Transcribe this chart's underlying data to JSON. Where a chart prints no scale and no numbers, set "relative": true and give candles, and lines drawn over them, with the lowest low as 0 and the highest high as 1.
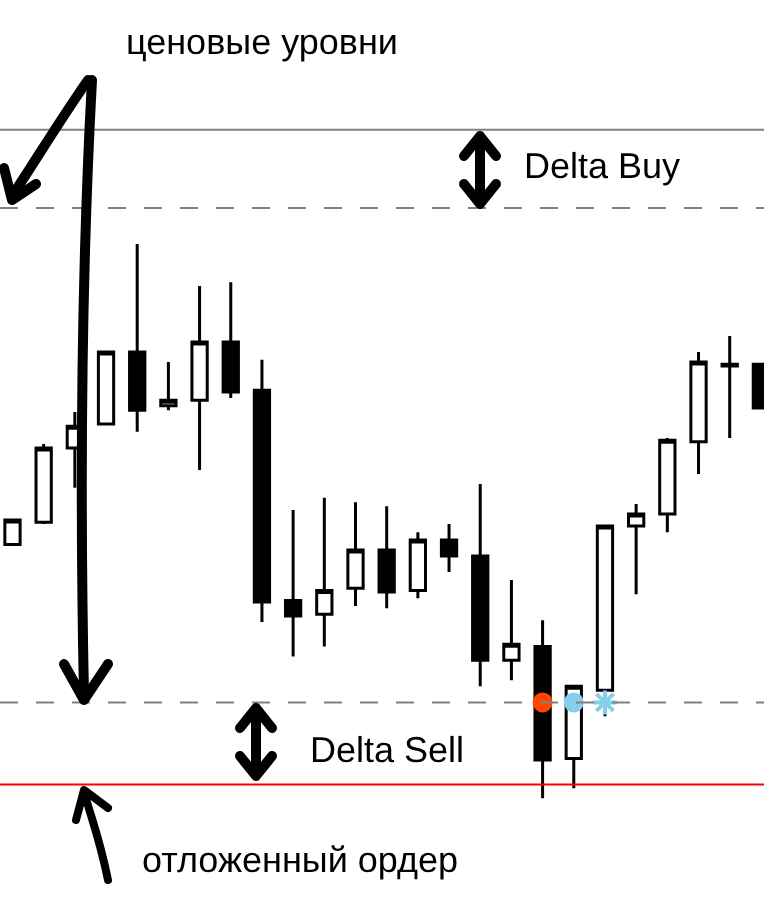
{
  "chart_data": {
    "type": "candlestick",
    "relative": true,
    "categories": [
      null,
      null,
      null,
      null,
      null,
      null,
      null,
      null,
      null,
      null,
      null,
      null,
      null,
      null,
      null,
      null,
      null,
      null,
      null,
      null,
      null,
      null,
      null,
      null,
      null
    ],
    "ohlc": [
      [
        0.458,
        0.502,
        0.458,
        0.502
      ],
      [
        0.498,
        0.639,
        0.495,
        0.632
      ],
      [
        0.632,
        0.697,
        0.56,
        0.671
      ],
      [
        0.675,
        0.805,
        0.675,
        0.805
      ],
      [
        0.805,
        1,
        0.661,
        0.7
      ],
      [
        0.708,
        0.787,
        0.7,
        0.718
      ],
      [
        0.718,
        0.924,
        0.592,
        0.823
      ],
      [
        0.823,
        0.931,
        0.722,
        0.733
      ],
      [
        0.736,
        0.791,
        0.318,
        0.354
      ],
      [
        0.357,
        0.52,
        0.256,
        0.329
      ],
      [
        0.332,
        0.542,
        0.274,
        0.375
      ],
      [
        0.379,
        0.534,
        0.347,
        0.448
      ],
      [
        0.448,
        0.527,
        0.343,
        0.372
      ],
      [
        0.375,
        0.48,
        0.361,
        0.466
      ],
      [
        0.466,
        0.495,
        0.408,
        0.437
      ],
      [
        0.437,
        0.567,
        0.202,
        0.249
      ],
      [
        0.249,
        0.394,
        0.213,
        0.278
      ],
      [
        0.274,
        0.321,
        0,
        0.069
      ],
      [
        0.072,
        0.202,
        0.018,
        0.202
      ],
      [
        0.195,
        0.491,
        0.148,
        0.491
      ],
      [
        0.491,
        0.531,
        0.368,
        0.513
      ],
      [
        0.513,
        0.65,
        0.48,
        0.646
      ],
      [
        0.643,
        0.805,
        0.585,
        0.787
      ],
      [
        0.783,
        0.834,
        0.65,
        0.78
      ],
      [
        0.783,
        0.783,
        0.704,
        0.704
      ]
    ],
    "series": [
      {
        "type": "scatter",
        "color": "#ff4500",
        "marker": "circle",
        "values": [
          null,
          null,
          null,
          null,
          null,
          null,
          null,
          null,
          null,
          null,
          null,
          null,
          null,
          null,
          null,
          null,
          null,
          0.173,
          null,
          null,
          null,
          null,
          null,
          null,
          null
        ]
      },
      {
        "type": "scatter",
        "color": "#87ceeb",
        "marker": "circle",
        "values": [
          null,
          null,
          null,
          null,
          null,
          null,
          null,
          null,
          null,
          null,
          null,
          null,
          null,
          null,
          null,
          null,
          null,
          null,
          0.173,
          null,
          null,
          null,
          null,
          null,
          null
        ]
      },
      {
        "type": "scatter",
        "color": "#87ceeb",
        "marker": "cross",
        "values": [
          null,
          null,
          null,
          null,
          null,
          null,
          null,
          null,
          null,
          null,
          null,
          null,
          null,
          null,
          null,
          null,
          null,
          null,
          null,
          0.173,
          null,
          null,
          null,
          null,
          null
        ]
      }
    ],
    "ref_lines": [
      {
        "axis": "y",
        "value": 1.206,
        "color": "#808080",
        "line_style": "solid"
      },
      {
        "axis": "y",
        "value": 1.065,
        "color": "#808080",
        "line_style": "dashed"
      },
      {
        "axis": "y",
        "value": 0.173,
        "color": "#808080",
        "line_style": "dashed"
      },
      {
        "axis": "y",
        "value": 0.025,
        "color": "#ff0000",
        "line_style": "solid"
      }
    ],
    "annotations": [
      "ценовые уровни",
      "Delta Buy",
      "Delta Sell",
      "отложенный ордер"
    ]
  }
}
